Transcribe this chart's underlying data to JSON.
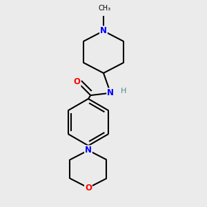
{
  "background_color": "#ebebeb",
  "bond_color": "#000000",
  "atom_colors": {
    "N": "#0000ff",
    "O": "#ff0000",
    "C": "#000000",
    "H": "#4a8a8a"
  },
  "figsize": [
    3.0,
    3.0
  ],
  "dpi": 100,
  "lw": 1.5
}
